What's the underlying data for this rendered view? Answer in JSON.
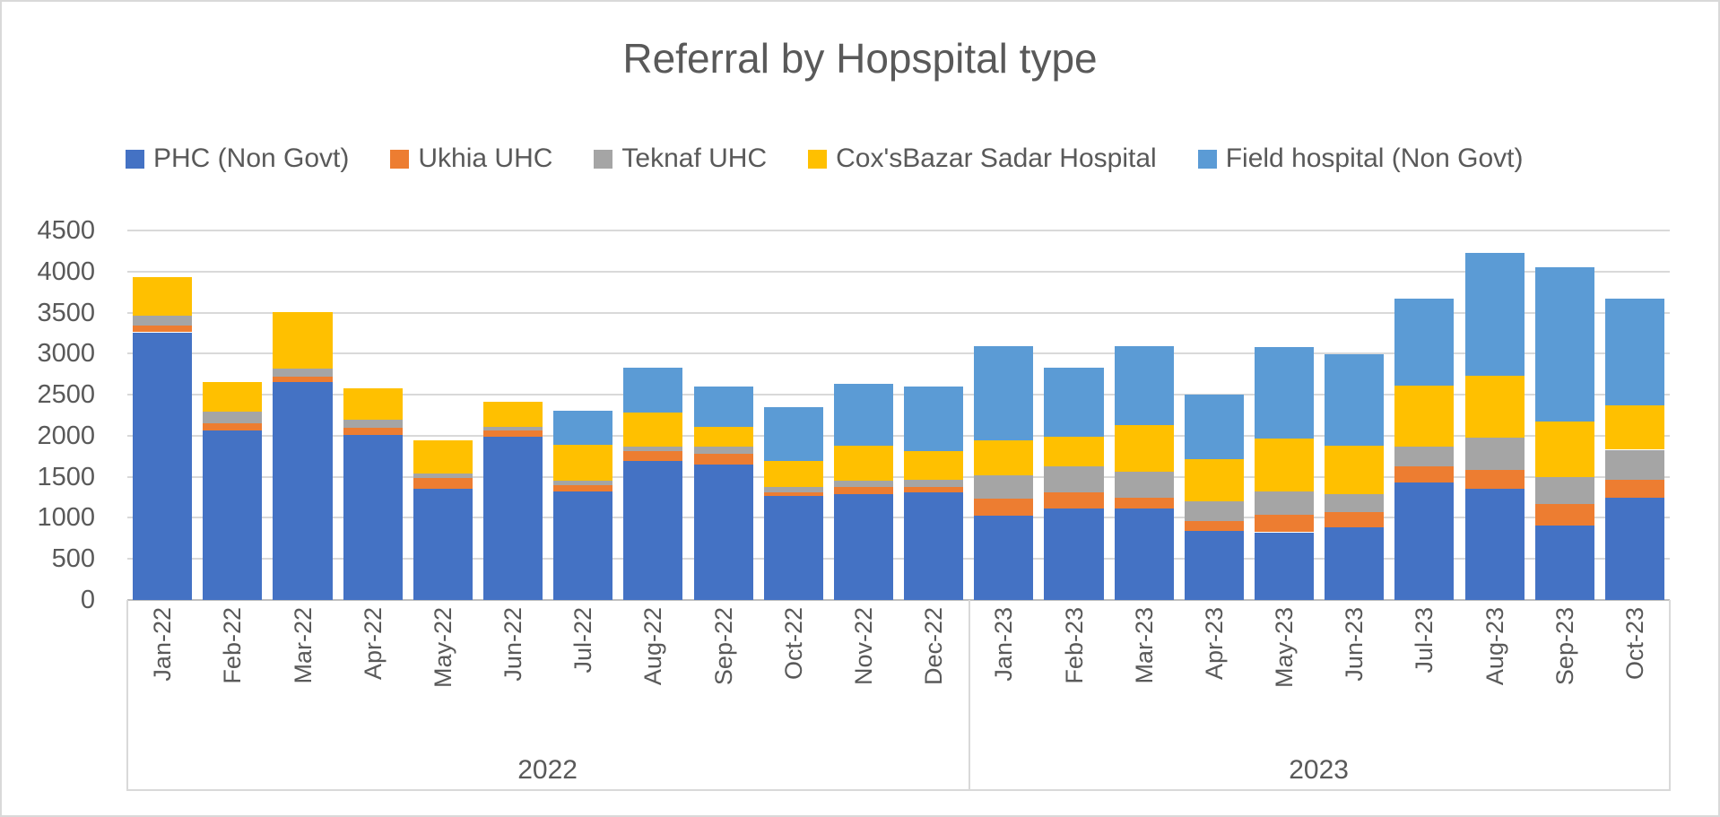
{
  "chart_data": {
    "type": "bar",
    "stacked": true,
    "title": "Referral by Hopspital type",
    "legend_position": "top",
    "grid": true,
    "categories": [
      "Jan-22",
      "Feb-22",
      "Mar-22",
      "Apr-22",
      "May-22",
      "Jun-22",
      "Jul-22",
      "Aug-22",
      "Sep-22",
      "Oct-22",
      "Nov-22",
      "Dec-22",
      "Jan-23",
      "Feb-23",
      "Mar-23",
      "Apr-23",
      "May-23",
      "Jun-23",
      "Jul-23",
      "Aug-23",
      "Sep-23",
      "Oct-23"
    ],
    "year_groups": [
      {
        "label": "2022",
        "count": 12
      },
      {
        "label": "2023",
        "count": 10
      }
    ],
    "y_axis": {
      "min": 0,
      "max": 4500,
      "step": 500,
      "tick_labels": [
        "0",
        "500",
        "1000",
        "1500",
        "2000",
        "2500",
        "3000",
        "3500",
        "4000",
        "4500"
      ]
    },
    "series": [
      {
        "name": "PHC (Non Govt)",
        "color": "#4472C4",
        "values": [
          3260,
          2065,
          2650,
          2005,
          1355,
          1985,
          1320,
          1695,
          1645,
          1270,
          1285,
          1315,
          1030,
          1110,
          1115,
          845,
          825,
          885,
          1430,
          1350,
          910,
          1245
        ]
      },
      {
        "name": "Ukhia UHC",
        "color": "#ED7D31",
        "values": [
          80,
          85,
          65,
          90,
          130,
          75,
          75,
          115,
          135,
          45,
          90,
          65,
          205,
          200,
          135,
          120,
          210,
          185,
          195,
          230,
          255,
          220
        ]
      },
      {
        "name": "Teknaf UHC",
        "color": "#A5A5A5",
        "values": [
          120,
          145,
          100,
          100,
          60,
          50,
          55,
          55,
          85,
          60,
          75,
          85,
          285,
          320,
          310,
          235,
          285,
          220,
          245,
          400,
          330,
          365
        ]
      },
      {
        "name": "Cox'sBazar Sadar Hospital",
        "color": "#FFC000",
        "values": [
          475,
          365,
          690,
          385,
          395,
          300,
          440,
          420,
          245,
          320,
          425,
          345,
          425,
          355,
          570,
          520,
          645,
          585,
          740,
          755,
          680,
          540
        ]
      },
      {
        "name": "Field hospital (Non Govt)",
        "color": "#5B9BD5",
        "values": [
          0,
          0,
          0,
          0,
          0,
          0,
          420,
          540,
          485,
          650,
          755,
          795,
          1145,
          840,
          960,
          785,
          1120,
          1120,
          1060,
          1495,
          1875,
          1300
        ]
      }
    ]
  },
  "colors": {
    "text": "#595959",
    "gridline": "#D9D9D9",
    "axis_line": "#BFBFBF",
    "border": "#D9D9D9",
    "background": "#FFFFFF"
  }
}
